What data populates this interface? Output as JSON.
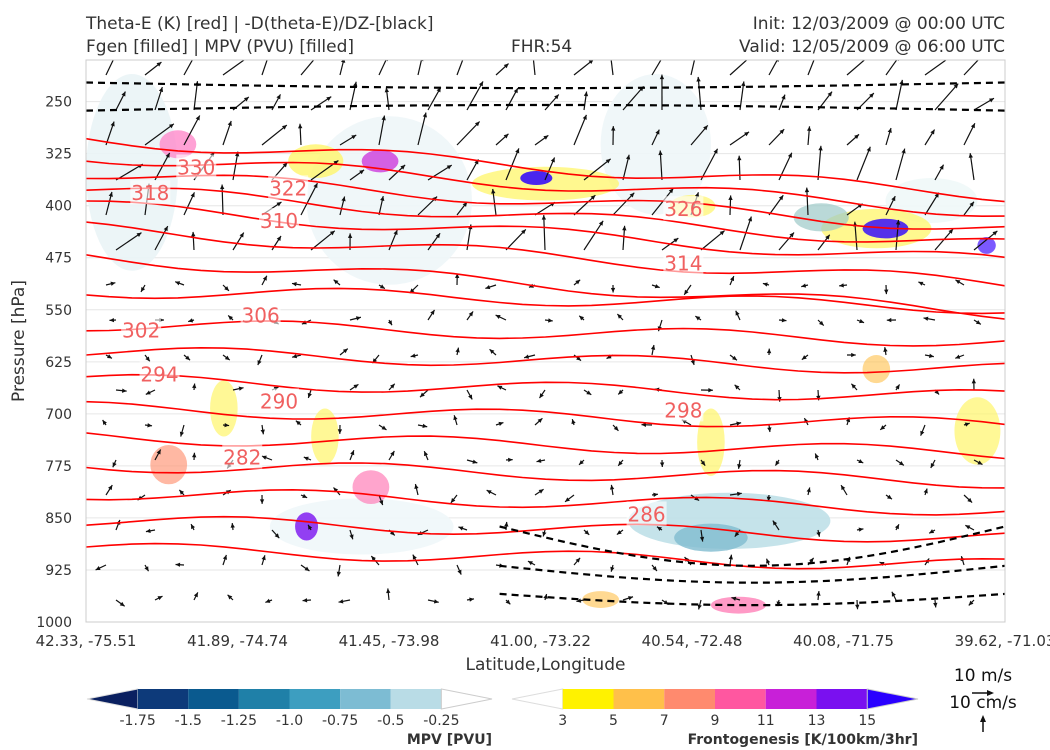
{
  "header": {
    "line1_left": "Theta-E (K) [red] | -D(theta-E)/DZ-[black]",
    "line2_left": "Fgen [filled] | MPV (PVU) [filled]",
    "fhr": "FHR:54",
    "init": "Init: 12/03/2009 @ 00:00 UTC",
    "valid": "Valid: 12/05/2009 @ 06:00 UTC"
  },
  "chart_data": {
    "type": "cross-section",
    "xlabel": "Latitude,Longitude",
    "ylabel": "Pressure [hPa]",
    "x_tick_labels": [
      "42.33, -75.51",
      "41.89, -74.74",
      "41.45, -73.98",
      "41.00, -73.22",
      "40.54, -72.48",
      "40.08, -71.75",
      "39.62, -71.03"
    ],
    "y_ticks": [
      250,
      325,
      400,
      475,
      550,
      625,
      700,
      775,
      850,
      925,
      1000
    ],
    "ylim": [
      1000,
      190
    ],
    "theta_e_contours": {
      "color": "#ff0000",
      "labels": [
        {
          "value": "330",
          "x": 0.12,
          "p": 345
        },
        {
          "value": "318",
          "x": 0.07,
          "p": 382
        },
        {
          "value": "322",
          "x": 0.22,
          "p": 375
        },
        {
          "value": "326",
          "x": 0.65,
          "p": 405
        },
        {
          "value": "310",
          "x": 0.21,
          "p": 422
        },
        {
          "value": "314",
          "x": 0.65,
          "p": 483
        },
        {
          "value": "306",
          "x": 0.19,
          "p": 558
        },
        {
          "value": "302",
          "x": 0.06,
          "p": 580
        },
        {
          "value": "294",
          "x": 0.08,
          "p": 643
        },
        {
          "value": "290",
          "x": 0.21,
          "p": 682
        },
        {
          "value": "298",
          "x": 0.65,
          "p": 695
        },
        {
          "value": "282",
          "x": 0.17,
          "p": 763
        },
        {
          "value": "286",
          "x": 0.61,
          "p": 845
        }
      ]
    },
    "legends": [
      {
        "title": "MPV [PVU]",
        "colors": [
          "#0a2060",
          "#0d3a7a",
          "#0a5a8f",
          "#1f80a8",
          "#3d9ec0",
          "#7dbcd3",
          "#b9dce6",
          "#ffffff"
        ],
        "tick_labels": [
          "-1.75",
          "-1.5",
          "-1.25",
          "-1.0",
          "-0.75",
          "-0.5",
          "-0.25"
        ]
      },
      {
        "title": "Frontogenesis [K/100km/3hr]",
        "colors": [
          "#ffffff",
          "#fff200",
          "#ffc04a",
          "#ff8a6e",
          "#ff57a0",
          "#c820d8",
          "#7a10f0",
          "#2a00ff"
        ],
        "tick_labels": [
          "3",
          "5",
          "7",
          "9",
          "11",
          "13",
          "15"
        ]
      }
    ],
    "wind_reference": {
      "horizontal": "10 m/s",
      "vertical": "10 cm/s"
    }
  }
}
